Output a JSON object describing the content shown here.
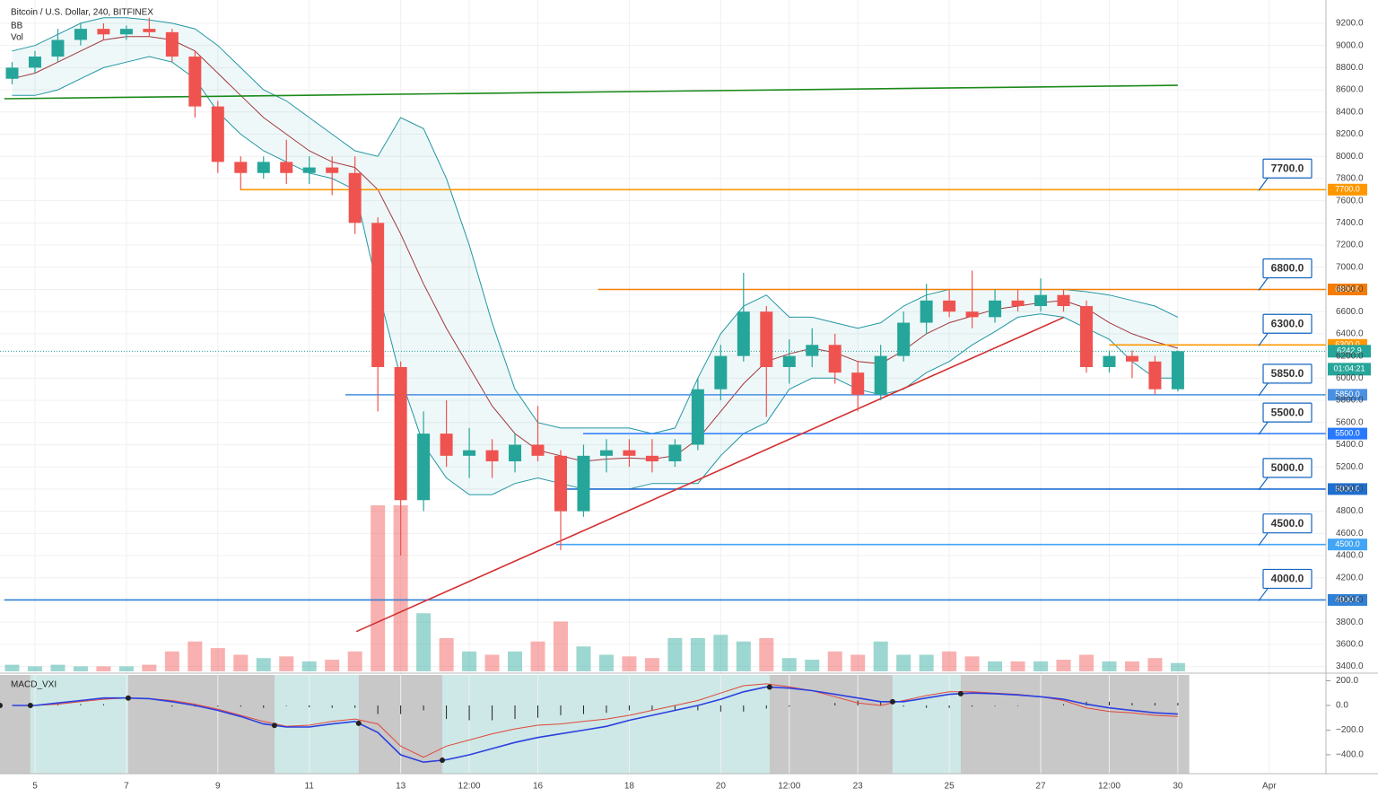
{
  "chart_data": {
    "type": "candlestick",
    "title": "Bitcoin / U.S. Dollar, 240, BITFINEX",
    "indicator_labels": [
      "BB",
      "Vol"
    ],
    "x": [
      4.5,
      5,
      5.5,
      6,
      6.5,
      7,
      7.5,
      8,
      8.5,
      9,
      9.5,
      10,
      10.5,
      11,
      11.5,
      12,
      12.5,
      13,
      13.5,
      14,
      14.5,
      15,
      15.5,
      16,
      16.5,
      17,
      17.5,
      18,
      18.5,
      19,
      19.5,
      20,
      20.5,
      21,
      21.5,
      22,
      22.5,
      23,
      23.5,
      24,
      24.5,
      25,
      25.5,
      26,
      26.5,
      27,
      27.5,
      28,
      28.5,
      29,
      29.5,
      30
    ],
    "open": [
      8700,
      8800,
      8900,
      9050,
      9150,
      9100,
      9150,
      9120,
      8900,
      8450,
      7950,
      7850,
      7950,
      7850,
      7900,
      7850,
      7400,
      6100,
      4900,
      5500,
      5300,
      5350,
      5250,
      5400,
      5300,
      4800,
      5300,
      5350,
      5300,
      5250,
      5400,
      5900,
      6200,
      6600,
      6100,
      6200,
      6300,
      6050,
      5850,
      6200,
      6500,
      6700,
      6600,
      6550,
      6700,
      6650,
      6750,
      6650,
      6100,
      6200,
      6150,
      5900
    ],
    "high": [
      8850,
      8950,
      9150,
      9200,
      9200,
      9180,
      9250,
      9150,
      8950,
      8500,
      8000,
      8000,
      8150,
      8000,
      8000,
      8000,
      7450,
      6150,
      5700,
      5800,
      5550,
      5450,
      5500,
      5750,
      5350,
      5400,
      5450,
      5450,
      5450,
      5450,
      6000,
      6300,
      6950,
      6650,
      6350,
      6450,
      6400,
      6150,
      6300,
      6600,
      6850,
      6800,
      6970,
      6800,
      6800,
      6900,
      6800,
      6700,
      6250,
      6250,
      6200,
      6250
    ],
    "low": [
      8650,
      8750,
      8850,
      9000,
      9050,
      9050,
      9080,
      8850,
      8350,
      7850,
      7700,
      7800,
      7750,
      7750,
      7650,
      7300,
      5700,
      4400,
      4800,
      5200,
      5100,
      5100,
      5150,
      5250,
      4450,
      4750,
      5150,
      5200,
      5150,
      5200,
      5350,
      5800,
      6150,
      5650,
      5950,
      6100,
      5950,
      5700,
      5800,
      6150,
      6400,
      6550,
      6450,
      6500,
      6600,
      6600,
      6600,
      6050,
      6050,
      6000,
      5850,
      5880
    ],
    "close": [
      8800,
      8900,
      9050,
      9150,
      9100,
      9150,
      9120,
      8900,
      8450,
      7950,
      7850,
      7950,
      7850,
      7900,
      7850,
      7400,
      6100,
      4900,
      5500,
      5300,
      5350,
      5250,
      5400,
      5300,
      4800,
      5300,
      5350,
      5300,
      5250,
      5400,
      5900,
      6200,
      6600,
      6100,
      6200,
      6300,
      6050,
      5850,
      6200,
      6500,
      6700,
      6600,
      6550,
      6700,
      6650,
      6750,
      6650,
      6100,
      6200,
      6150,
      5900,
      6242.9
    ],
    "volume": [
      4,
      3,
      4,
      3,
      3,
      3,
      4,
      12,
      18,
      14,
      10,
      8,
      9,
      6,
      7,
      12,
      100,
      100,
      35,
      20,
      12,
      10,
      12,
      18,
      30,
      15,
      10,
      9,
      8,
      20,
      20,
      22,
      18,
      20,
      8,
      7,
      12,
      10,
      18,
      10,
      10,
      12,
      9,
      6,
      6,
      6,
      7,
      10,
      6,
      6,
      8,
      5
    ],
    "bb_upper": [
      8950,
      9000,
      9100,
      9200,
      9250,
      9250,
      9230,
      9200,
      9150,
      9000,
      8800,
      8600,
      8500,
      8350,
      8200,
      8050,
      8000,
      8350,
      8250,
      7800,
      7200,
      6500,
      5900,
      5600,
      5550,
      5550,
      5550,
      5550,
      5500,
      5550,
      6000,
      6400,
      6650,
      6750,
      6550,
      6550,
      6500,
      6450,
      6500,
      6650,
      6750,
      6800,
      6800,
      6800,
      6800,
      6800,
      6800,
      6780,
      6750,
      6700,
      6650,
      6550
    ],
    "bb_middle": [
      8700,
      8750,
      8850,
      8950,
      9050,
      9080,
      9080,
      9050,
      8950,
      8750,
      8550,
      8350,
      8200,
      8050,
      7950,
      7900,
      7700,
      7300,
      6850,
      6450,
      6100,
      5750,
      5500,
      5350,
      5300,
      5250,
      5270,
      5280,
      5270,
      5300,
      5450,
      5700,
      5950,
      6150,
      6220,
      6270,
      6230,
      6150,
      6130,
      6250,
      6400,
      6500,
      6560,
      6620,
      6650,
      6680,
      6700,
      6630,
      6500,
      6400,
      6330,
      6270
    ],
    "bb_lower": [
      8550,
      8550,
      8600,
      8700,
      8800,
      8850,
      8900,
      8850,
      8700,
      8400,
      8200,
      8050,
      7950,
      7850,
      7800,
      7700,
      6800,
      6000,
      5400,
      5100,
      4950,
      4950,
      5050,
      5100,
      5050,
      5000,
      5000,
      5000,
      5050,
      5050,
      5050,
      5300,
      5500,
      5600,
      5900,
      6000,
      6000,
      5900,
      5850,
      5900,
      6050,
      6150,
      6300,
      6420,
      6550,
      6580,
      6550,
      6450,
      6350,
      6150,
      6000,
      6000
    ],
    "up_color": "#26a69a",
    "down_color": "#ef5350",
    "bb_band_color": "#2196a3",
    "bb_middle_color": "#a0383d",
    "xlim": [
      4.235,
      33.24
    ],
    "xticks": [
      5,
      7,
      9,
      11,
      13,
      {
        "value": 14.5,
        "label": "12:00"
      },
      16,
      18,
      20,
      {
        "value": 21.5,
        "label": "12:00"
      },
      23,
      25,
      27,
      {
        "value": 28.5,
        "label": "12:00"
      },
      30,
      {
        "value": 32,
        "label": "Apr"
      }
    ],
    "ylim": [
      3340,
      9410
    ],
    "yticks": [
      {
        "value": 3400,
        "label": "3400.0"
      },
      {
        "value": 3600,
        "label": "3600.0"
      },
      {
        "value": 3800,
        "label": "3800.0"
      },
      {
        "value": 4000,
        "label": "4000.0"
      },
      {
        "value": 4200,
        "label": "4200.0"
      },
      {
        "value": 4400,
        "label": "4400.0"
      },
      {
        "value": 4600,
        "label": "4600.0"
      },
      {
        "value": 4800,
        "label": "4800.0"
      },
      {
        "value": 5000,
        "label": "5000.0"
      },
      {
        "value": 5200,
        "label": "5200.0"
      },
      {
        "value": 5400,
        "label": "5400.0"
      },
      {
        "value": 5600,
        "label": "5600.0"
      },
      {
        "value": 5800,
        "label": "5800.0"
      },
      {
        "value": 6000,
        "label": "6000.0"
      },
      {
        "value": 6200,
        "label": "6200.0"
      },
      {
        "value": 6400,
        "label": "6400.0"
      },
      {
        "value": 6600,
        "label": "6600.0"
      },
      {
        "value": 6800,
        "label": "6800.0"
      },
      {
        "value": 7000,
        "label": "7000.0"
      },
      {
        "value": 7200,
        "label": "7200.0"
      },
      {
        "value": 7400,
        "label": "7400.0"
      },
      {
        "value": 7600,
        "label": "7600.0"
      },
      {
        "value": 7800,
        "label": "7800.0"
      },
      {
        "value": 8000,
        "label": "8000.0"
      },
      {
        "value": 8200,
        "label": "8200.0"
      },
      {
        "value": 8400,
        "label": "8400.0"
      },
      {
        "value": 8600,
        "label": "8600.0"
      },
      {
        "value": 8800,
        "label": "8800.0"
      },
      {
        "value": 9000,
        "label": "9000.0"
      },
      {
        "value": 9200,
        "label": "9200.0"
      }
    ],
    "grid": true,
    "last_price": 6242.9,
    "countdown": "01:04:21",
    "levels": [
      {
        "value": 7700,
        "label": "7700.0",
        "start": 9.49,
        "color": "#ff9800",
        "text_color": "#d32f2f"
      },
      {
        "value": 6800,
        "label": "6800.0",
        "start": 17.32,
        "color": "#f57c00",
        "text_color": "#d32f2f"
      },
      {
        "value": 6300,
        "label": "6300.0",
        "start": 28.5,
        "color": "#ff9800",
        "text_color": "#d32f2f"
      },
      {
        "value": 5850,
        "label": "5850.0",
        "start": 11.79,
        "color": "#4a90e2",
        "text_color": "#0d2ea8"
      },
      {
        "value": 5500,
        "label": "5500.0",
        "start": 16.99,
        "color": "#2979ff",
        "text_color": "#0d2ea8"
      },
      {
        "value": 5000,
        "label": "5000.0",
        "start": 16.6,
        "color": "#1e6fd0",
        "text_color": "#0d2ea8"
      },
      {
        "value": 4500,
        "label": "4500.0",
        "start": 16.4,
        "color": "#42a5f5",
        "text_color": "#0d2ea8"
      },
      {
        "value": 4000,
        "label": "4000.0",
        "start": 4.33,
        "color": "#2f80d6",
        "text_color": "#0d2ea8"
      }
    ],
    "trendlines": [
      {
        "color": "#1b8a1b",
        "x": [
          4.33,
          30.0
        ],
        "y": [
          8520,
          8640
        ]
      },
      {
        "color": "#d32f2f",
        "x": [
          12.03,
          27.5
        ],
        "y": [
          3715,
          6547
        ]
      }
    ],
    "macd": {
      "title": "MACD_VXI",
      "macd": [
        0,
        0,
        20,
        40,
        60,
        60,
        55,
        30,
        0,
        -40,
        -90,
        -150,
        -175,
        -175,
        -150,
        -130,
        -220,
        -400,
        -460,
        -440,
        -400,
        -350,
        -300,
        -260,
        -230,
        -200,
        -170,
        -120,
        -80,
        -40,
        0,
        50,
        110,
        150,
        140,
        120,
        90,
        60,
        30,
        30,
        60,
        90,
        100,
        95,
        85,
        70,
        50,
        10,
        -20,
        -40,
        -60,
        -70
      ],
      "signal": [
        0,
        0,
        10,
        30,
        50,
        60,
        55,
        40,
        10,
        -30,
        -80,
        -130,
        -170,
        -160,
        -130,
        -110,
        -150,
        -330,
        -420,
        -330,
        -280,
        -230,
        -190,
        -160,
        -150,
        -130,
        -110,
        -80,
        -40,
        0,
        40,
        100,
        160,
        175,
        150,
        120,
        70,
        20,
        0,
        40,
        80,
        110,
        110,
        100,
        90,
        70,
        40,
        -20,
        -50,
        -60,
        -80,
        -90
      ],
      "histogram": [
        0,
        0,
        10,
        10,
        10,
        0,
        0,
        -10,
        -10,
        -10,
        -10,
        -20,
        -5,
        -15,
        -20,
        -20,
        -70,
        -70,
        -40,
        -110,
        -120,
        -120,
        -110,
        -100,
        -80,
        -70,
        -60,
        -40,
        -40,
        -40,
        -40,
        -50,
        -50,
        -25,
        -10,
        0,
        20,
        40,
        30,
        -10,
        -20,
        -20,
        -10,
        -5,
        -5,
        0,
        10,
        30,
        30,
        20,
        20,
        20
      ],
      "macd_color": "#2b3fe0",
      "signal_color": "#e0473a",
      "ylim": [
        -553,
        247
      ],
      "yticks": [
        {
          "value": 200,
          "label": "200.0"
        },
        {
          "value": 0,
          "label": "0.0"
        },
        {
          "value": -200,
          "label": "−200.0"
        },
        {
          "value": -400,
          "label": "−400.0"
        }
      ],
      "zones": [
        {
          "start": 4.235,
          "end": 4.9,
          "color": "#c8c8c8"
        },
        {
          "start": 4.9,
          "end": 7.04,
          "color": "#cde8e6"
        },
        {
          "start": 7.04,
          "end": 10.24,
          "color": "#c8c8c8"
        },
        {
          "start": 10.24,
          "end": 12.08,
          "color": "#cde8e6"
        },
        {
          "start": 12.08,
          "end": 13.91,
          "color": "#c8c8c8"
        },
        {
          "start": 13.91,
          "end": 21.07,
          "color": "#cde8e6"
        },
        {
          "start": 21.07,
          "end": 23.76,
          "color": "#c8c8c8"
        },
        {
          "start": 23.76,
          "end": 25.25,
          "color": "#cde8e6"
        },
        {
          "start": 25.25,
          "end": 30.25,
          "color": "#c8c8c8"
        }
      ]
    }
  }
}
